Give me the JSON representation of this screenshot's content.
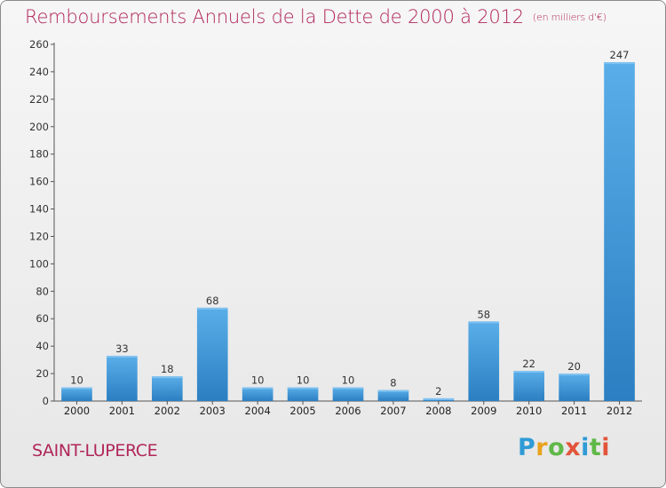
{
  "title": {
    "main": "Remboursements Annuels de la Dette de 2000 à 2012",
    "unit": "(en milliers d'€)"
  },
  "commune": "SAINT-LUPERCE",
  "logo": {
    "letters": [
      "P",
      "r",
      "o",
      "x",
      "i",
      "t",
      "i"
    ],
    "colors": [
      "#2f9bd6",
      "#e9a21c",
      "#5fb848",
      "#e2553a",
      "#2f9bd6",
      "#5fb848",
      "#e2553a"
    ]
  },
  "chart_data": {
    "type": "bar",
    "categories": [
      "2000",
      "2001",
      "2002",
      "2003",
      "2004",
      "2005",
      "2006",
      "2007",
      "2008",
      "2009",
      "2010",
      "2011",
      "2012"
    ],
    "values": [
      10,
      33,
      18,
      68,
      10,
      10,
      10,
      8,
      2,
      58,
      22,
      20,
      247
    ],
    "ylim": [
      0,
      260
    ],
    "yticks": [
      0,
      20,
      40,
      60,
      80,
      100,
      120,
      140,
      160,
      180,
      200,
      220,
      240,
      260
    ],
    "grid": false,
    "bar_color": "#3b8fd4"
  }
}
